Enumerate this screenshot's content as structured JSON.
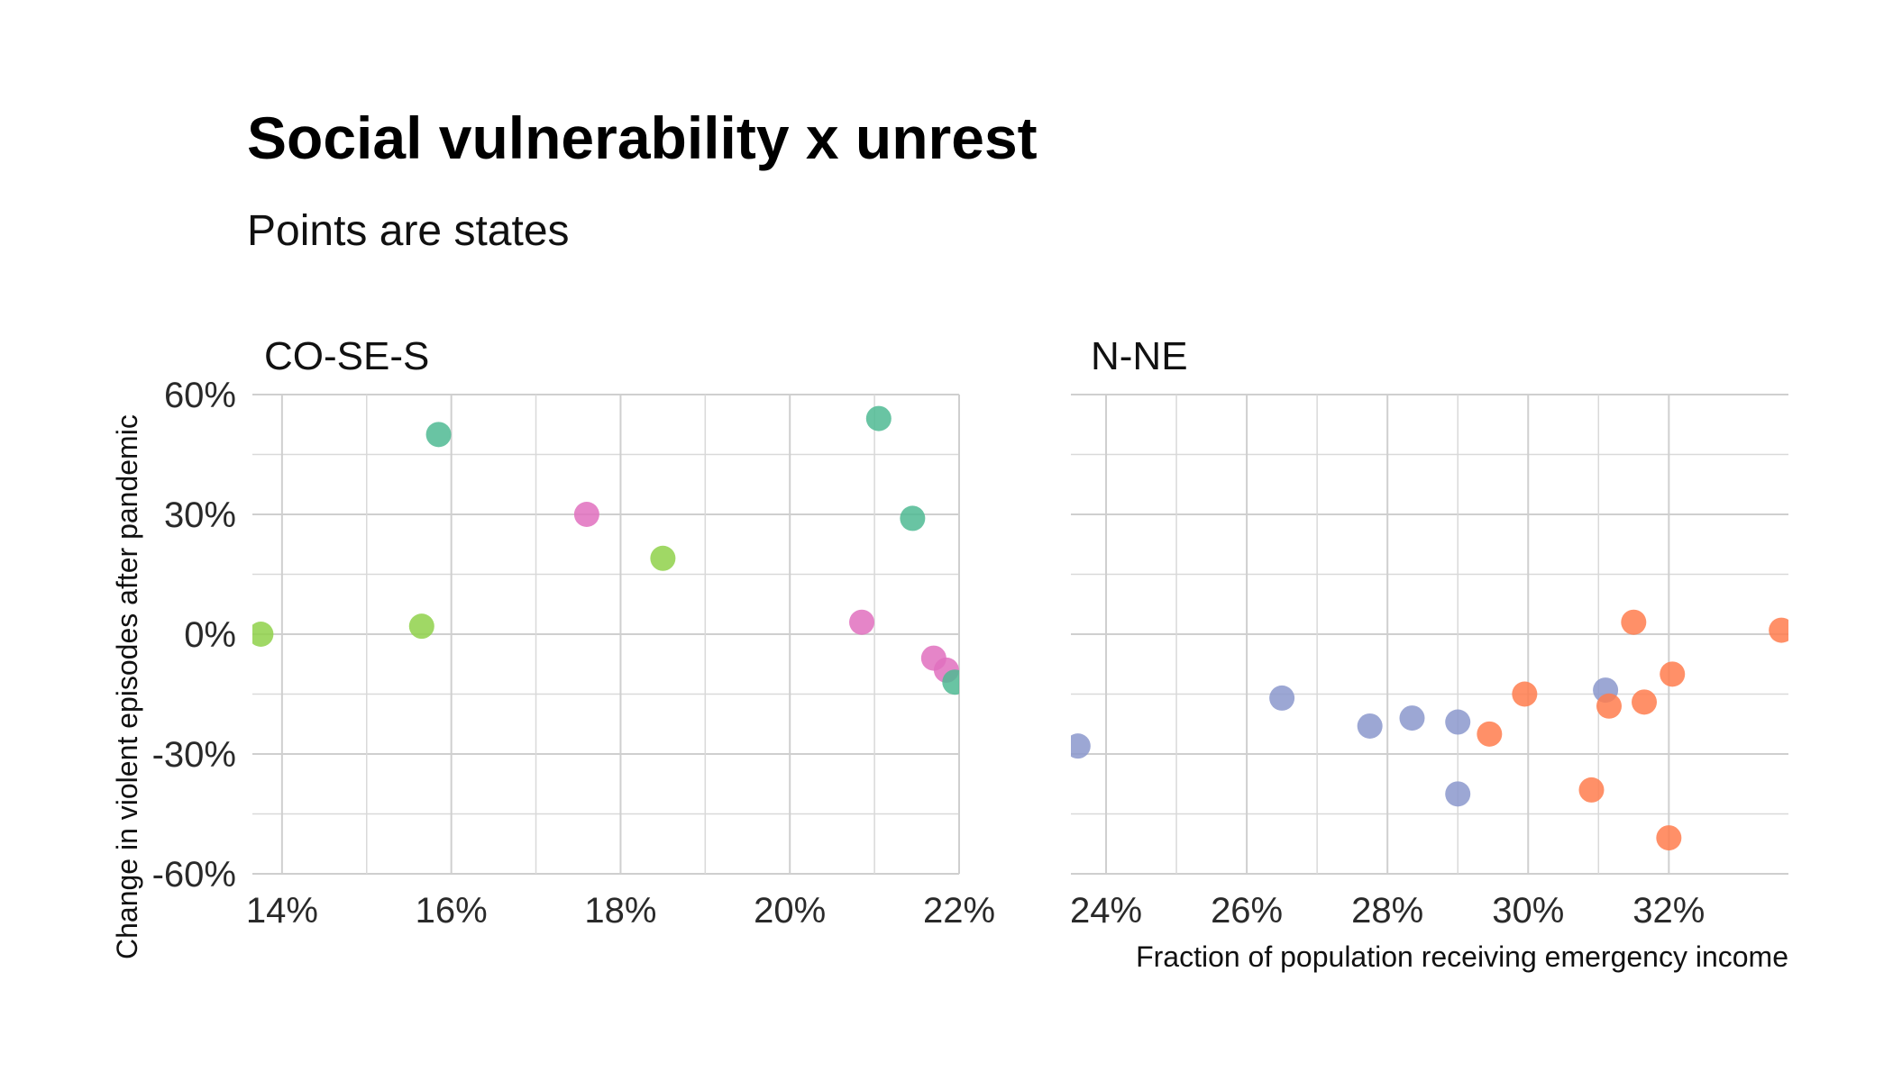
{
  "chart_data": {
    "type": "scatter",
    "title": "Social vulnerability x unrest",
    "subtitle": "Points are states",
    "ylabel": "Change in violent episodes after pandemic",
    "xlabel": "Fraction of population receiving emergency income",
    "ylim": [
      -60,
      60
    ],
    "yticks": [
      60,
      30,
      0,
      -30,
      -60
    ],
    "ytick_labels": [
      "60%",
      "30%",
      "0%",
      "-30%",
      "-60%"
    ],
    "grid": true,
    "legend": "none",
    "region_colors": {
      "CO": "#8fd14a",
      "S": "#e070be",
      "SE": "#4fba93",
      "N": "#8b98cc",
      "NE": "#ff7d4d"
    },
    "panels": [
      {
        "name": "CO-SE-S",
        "xlim": [
          13.65,
          22
        ],
        "xticks": [
          14,
          16,
          18,
          20,
          22
        ],
        "xtick_labels": [
          "14%",
          "16%",
          "18%",
          "20%",
          "22%"
        ],
        "points": [
          {
            "x": 13.75,
            "y": 0,
            "region": "CO"
          },
          {
            "x": 15.65,
            "y": 2,
            "region": "CO"
          },
          {
            "x": 18.5,
            "y": 19,
            "region": "CO"
          },
          {
            "x": 17.6,
            "y": 30,
            "region": "S"
          },
          {
            "x": 20.85,
            "y": 3,
            "region": "S"
          },
          {
            "x": 21.7,
            "y": -6,
            "region": "S"
          },
          {
            "x": 21.85,
            "y": -9,
            "region": "S"
          },
          {
            "x": 15.85,
            "y": 50,
            "region": "SE"
          },
          {
            "x": 21.05,
            "y": 54,
            "region": "SE"
          },
          {
            "x": 21.45,
            "y": 29,
            "region": "SE"
          },
          {
            "x": 21.95,
            "y": -12,
            "region": "SE"
          }
        ]
      },
      {
        "name": "N-NE",
        "xlim": [
          23.5,
          33.7
        ],
        "xticks": [
          24,
          26,
          28,
          30,
          32
        ],
        "xtick_labels": [
          "24%",
          "26%",
          "28%",
          "30%",
          "32%"
        ],
        "points": [
          {
            "x": 23.6,
            "y": -28,
            "region": "N"
          },
          {
            "x": 26.5,
            "y": -16,
            "region": "N"
          },
          {
            "x": 27.75,
            "y": -23,
            "region": "N"
          },
          {
            "x": 28.35,
            "y": -21,
            "region": "N"
          },
          {
            "x": 29.0,
            "y": -22,
            "region": "N"
          },
          {
            "x": 29.0,
            "y": -40,
            "region": "N"
          },
          {
            "x": 31.1,
            "y": -14,
            "region": "N"
          },
          {
            "x": 29.45,
            "y": -25,
            "region": "NE"
          },
          {
            "x": 29.95,
            "y": -15,
            "region": "NE"
          },
          {
            "x": 30.9,
            "y": -39,
            "region": "NE"
          },
          {
            "x": 31.15,
            "y": -18,
            "region": "NE"
          },
          {
            "x": 31.5,
            "y": 3,
            "region": "NE"
          },
          {
            "x": 31.65,
            "y": -17,
            "region": "NE"
          },
          {
            "x": 32.05,
            "y": -10,
            "region": "NE"
          },
          {
            "x": 32.0,
            "y": -51,
            "region": "NE"
          },
          {
            "x": 33.6,
            "y": 1,
            "region": "NE"
          }
        ]
      }
    ]
  }
}
